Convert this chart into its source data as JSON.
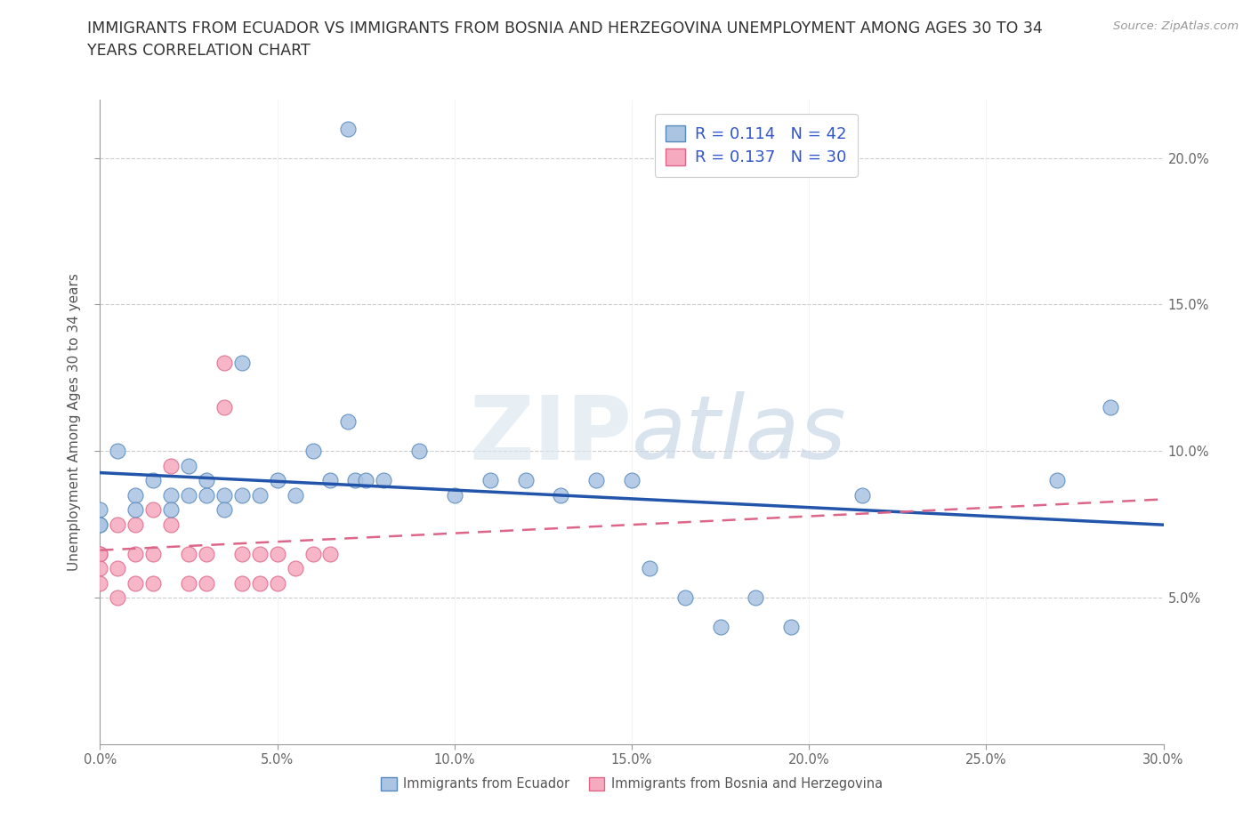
{
  "title": "IMMIGRANTS FROM ECUADOR VS IMMIGRANTS FROM BOSNIA AND HERZEGOVINA UNEMPLOYMENT AMONG AGES 30 TO 34\nYEARS CORRELATION CHART",
  "source": "Source: ZipAtlas.com",
  "ylabel": "Unemployment Among Ages 30 to 34 years",
  "xlim": [
    0.0,
    0.3
  ],
  "ylim": [
    0.0,
    0.22
  ],
  "xticks": [
    0.0,
    0.05,
    0.1,
    0.15,
    0.2,
    0.25,
    0.3
  ],
  "xtick_labels": [
    "0.0%",
    "5.0%",
    "10.0%",
    "15.0%",
    "20.0%",
    "25.0%",
    "30.0%"
  ],
  "yticks": [
    0.05,
    0.1,
    0.15,
    0.2
  ],
  "ytick_labels": [
    "5.0%",
    "10.0%",
    "15.0%",
    "20.0%"
  ],
  "ecuador_color": "#aac4e2",
  "bosnia_color": "#f5aabf",
  "ecuador_edge": "#5588bb",
  "bosnia_edge": "#dd6688",
  "line_ecuador_color": "#2255aa",
  "line_bosnia_color": "#dd6688",
  "R_ecuador": 0.114,
  "N_ecuador": 42,
  "R_bosnia": 0.137,
  "N_bosnia": 30,
  "watermark_zip": "ZIP",
  "watermark_atlas": "atlas",
  "background_color": "#ffffff",
  "grid_color": "#cccccc",
  "title_fontsize": 12.5,
  "axis_fontsize": 11,
  "tick_fontsize": 10.5,
  "legend_fontsize": 13,
  "ec_x": [
    0.0,
    0.0,
    0.0,
    0.005,
    0.005,
    0.01,
    0.01,
    0.015,
    0.015,
    0.02,
    0.02,
    0.025,
    0.025,
    0.025,
    0.03,
    0.03,
    0.035,
    0.035,
    0.04,
    0.04,
    0.045,
    0.05,
    0.055,
    0.06,
    0.065,
    0.07,
    0.075,
    0.08,
    0.09,
    0.1,
    0.11,
    0.12,
    0.13,
    0.14,
    0.155,
    0.165,
    0.18,
    0.195,
    0.22,
    0.27,
    0.285,
    0.04
  ],
  "ec_y": [
    0.08,
    0.075,
    0.075,
    0.1,
    0.08,
    0.085,
    0.08,
    0.09,
    0.085,
    0.085,
    0.08,
    0.095,
    0.09,
    0.085,
    0.09,
    0.085,
    0.085,
    0.08,
    0.13,
    0.09,
    0.21,
    0.09,
    0.085,
    0.1,
    0.09,
    0.11,
    0.09,
    0.09,
    0.1,
    0.085,
    0.09,
    0.09,
    0.085,
    0.09,
    0.09,
    0.06,
    0.05,
    0.04,
    0.085,
    0.09,
    0.115,
    0.085
  ],
  "bo_x": [
    0.0,
    0.0,
    0.0,
    0.0,
    0.005,
    0.005,
    0.005,
    0.01,
    0.01,
    0.01,
    0.015,
    0.015,
    0.015,
    0.02,
    0.02,
    0.025,
    0.025,
    0.03,
    0.03,
    0.035,
    0.035,
    0.04,
    0.04,
    0.05,
    0.055,
    0.06,
    0.065,
    0.07,
    0.075,
    0.08
  ],
  "bo_y": [
    0.065,
    0.07,
    0.06,
    0.055,
    0.075,
    0.06,
    0.05,
    0.08,
    0.065,
    0.055,
    0.075,
    0.065,
    0.055,
    0.095,
    0.08,
    0.065,
    0.055,
    0.065,
    0.055,
    0.13,
    0.115,
    0.065,
    0.055,
    0.065,
    0.06,
    0.065,
    0.115,
    0.06,
    0.055,
    0.06
  ]
}
